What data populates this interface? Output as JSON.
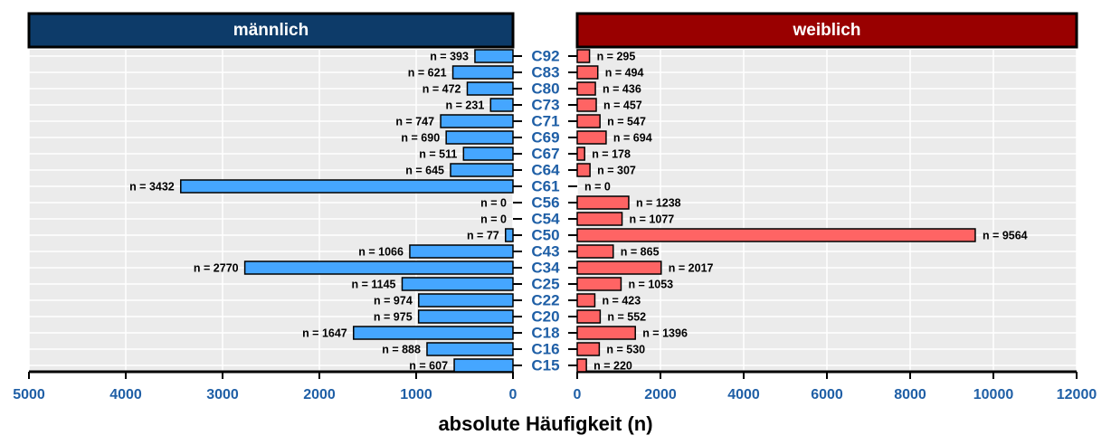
{
  "chart_data": [
    {
      "type": "barh",
      "title": "männlich",
      "color": "#45a6ff",
      "header_color": "#0d3b69",
      "reversed": true,
      "categories": [
        "C92",
        "C83",
        "C80",
        "C73",
        "C71",
        "C69",
        "C67",
        "C64",
        "C61",
        "C56",
        "C54",
        "C50",
        "C43",
        "C34",
        "C25",
        "C22",
        "C20",
        "C18",
        "C16",
        "C15"
      ],
      "values": [
        393,
        621,
        472,
        231,
        747,
        690,
        511,
        645,
        3432,
        0,
        0,
        77,
        1066,
        2770,
        1145,
        974,
        975,
        1647,
        888,
        607
      ],
      "value_labels": [
        "n = 393",
        "n = 621",
        "n = 472",
        "n = 231",
        "n = 747",
        "n = 690",
        "n = 511",
        "n = 645",
        "n = 3432",
        "n = 0",
        "n = 0",
        "n = 77",
        "n = 1066",
        "n = 2770",
        "n = 1145",
        "n = 974",
        "n = 975",
        "n = 1647",
        "n = 888",
        "n = 607"
      ],
      "xlim": [
        0,
        5000
      ],
      "xticks": [
        0,
        1000,
        2000,
        3000,
        4000,
        5000
      ],
      "grid": true
    },
    {
      "type": "barh",
      "title": "weiblich",
      "color": "#ff6464",
      "header_color": "#990000",
      "reversed": false,
      "xlabel": "absolute Häufigkeit (n)",
      "values": [
        295,
        494,
        436,
        457,
        547,
        694,
        178,
        307,
        0,
        1238,
        1077,
        9564,
        865,
        2017,
        1053,
        423,
        552,
        1396,
        530,
        220
      ],
      "value_labels": [
        "n = 295",
        "n = 494",
        "n = 436",
        "n = 457",
        "n = 547",
        "n = 694",
        "n = 178",
        "n = 307",
        "n = 0",
        "n = 1238",
        "n = 1077",
        "n = 9564",
        "n = 865",
        "n = 2017",
        "n = 1053",
        "n = 423",
        "n = 552",
        "n = 1396",
        "n = 530",
        "n = 220"
      ],
      "xlim": [
        0,
        12000
      ],
      "xticks": [
        0,
        2000,
        4000,
        6000,
        8000,
        10000,
        12000
      ],
      "grid": true
    }
  ]
}
